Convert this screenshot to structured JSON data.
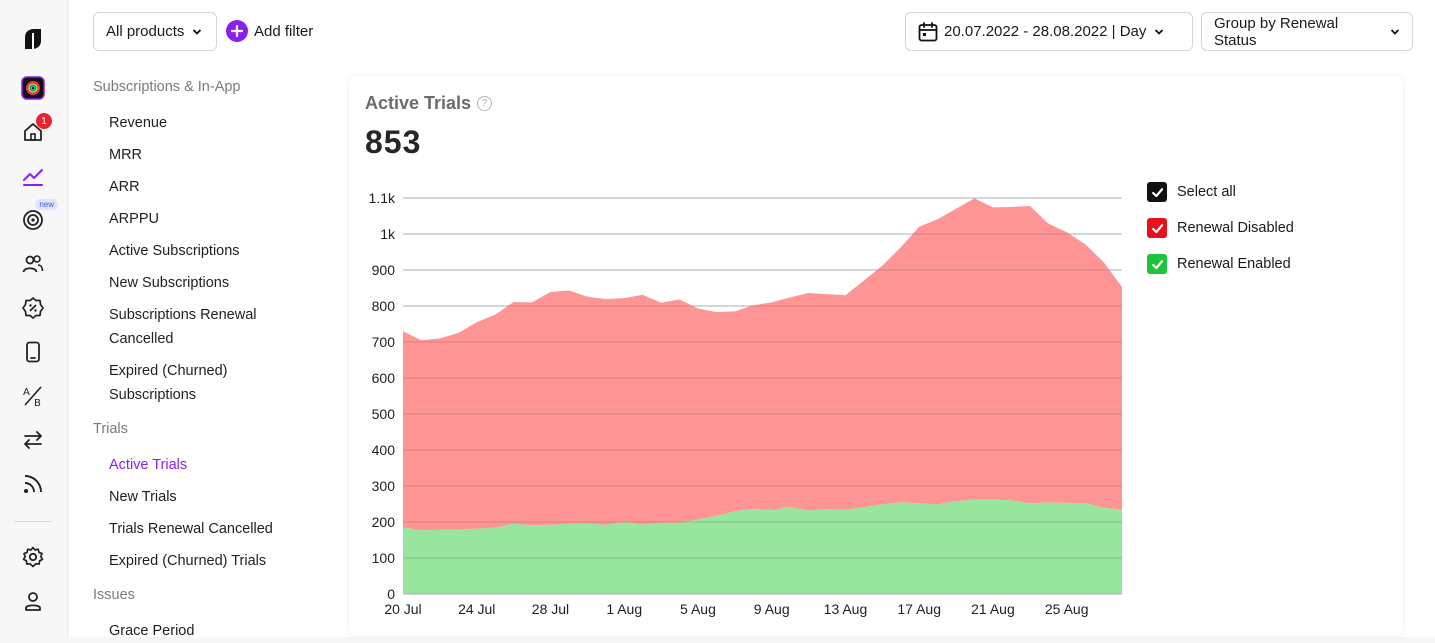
{
  "rail": {
    "home_badge": "1",
    "new_badge": "new",
    "icons": [
      "logo-icon",
      "app-icon",
      "home-icon",
      "analytics-icon",
      "target-icon",
      "users-icon",
      "promo-icon",
      "device-icon",
      "ab-test-icon",
      "transfer-icon",
      "feed-icon",
      "settings-icon",
      "profile-icon"
    ]
  },
  "toolbar": {
    "products_label": "All products",
    "add_filter_label": "Add filter",
    "date_range_label": "20.07.2022 - 28.08.2022 | Day",
    "group_by_label": "Group by Renewal Status"
  },
  "nav": {
    "sections": [
      {
        "label": "Subscriptions & In-App"
      },
      {
        "label": "Trials"
      },
      {
        "label": "Issues"
      }
    ],
    "subscriptions_items": [
      "Revenue",
      "MRR",
      "ARR",
      "ARPPU",
      "Active Subscriptions",
      "New Subscriptions",
      "Subscriptions Renewal Cancelled",
      "Expired (Churned) Subscriptions"
    ],
    "trials_items": [
      "Active Trials",
      "New Trials",
      "Trials Renewal Cancelled",
      "Expired (Churned) Trials"
    ],
    "issues_items": [
      "Grace Period"
    ],
    "active_item": "Active Trials"
  },
  "card": {
    "title": "Active Trials",
    "value": "853"
  },
  "legend": {
    "select_all": "Select all",
    "items": [
      {
        "label": "Renewal Disabled",
        "color": "#e8101a"
      },
      {
        "label": "Renewal Enabled",
        "color": "#1ec43a"
      }
    ],
    "select_all_color": "#111111"
  },
  "chart_data": {
    "type": "area",
    "stacked": true,
    "x": [
      "20 Jul",
      "21 Jul",
      "22 Jul",
      "23 Jul",
      "24 Jul",
      "25 Jul",
      "26 Jul",
      "27 Jul",
      "28 Jul",
      "29 Jul",
      "30 Jul",
      "31 Jul",
      "1 Aug",
      "2 Aug",
      "3 Aug",
      "4 Aug",
      "5 Aug",
      "6 Aug",
      "7 Aug",
      "8 Aug",
      "9 Aug",
      "10 Aug",
      "11 Aug",
      "12 Aug",
      "13 Aug",
      "14 Aug",
      "15 Aug",
      "16 Aug",
      "17 Aug",
      "18 Aug",
      "19 Aug",
      "20 Aug",
      "21 Aug",
      "22 Aug",
      "23 Aug",
      "24 Aug",
      "25 Aug",
      "26 Aug",
      "27 Aug",
      "28 Aug"
    ],
    "x_tick_labels": [
      "20 Jul",
      "24 Jul",
      "28 Jul",
      "1 Aug",
      "5 Aug",
      "9 Aug",
      "13 Aug",
      "17 Aug",
      "21 Aug",
      "25 Aug"
    ],
    "series": [
      {
        "name": "Renewal Enabled",
        "color": "#98e69e",
        "values": [
          185,
          177,
          178,
          179,
          182,
          184,
          195,
          191,
          192,
          195,
          196,
          192,
          200,
          193,
          198,
          198,
          207,
          217,
          230,
          237,
          233,
          242,
          232,
          236,
          234,
          241,
          249,
          255,
          252,
          249,
          258,
          262,
          262,
          260,
          252,
          254,
          253,
          252,
          240,
          234
        ]
      },
      {
        "name": "Renewal Disabled",
        "color": "#ff9494",
        "values": [
          545,
          528,
          532,
          546,
          573,
          592,
          616,
          619,
          647,
          648,
          630,
          627,
          622,
          638,
          611,
          620,
          586,
          566,
          555,
          565,
          577,
          582,
          604,
          597,
          596,
          630,
          663,
          708,
          768,
          792,
          812,
          837,
          812,
          815,
          826,
          775,
          752,
          720,
          682,
          619
        ]
      }
    ],
    "ylim": [
      0,
      1100
    ],
    "y_ticks": [
      0,
      100,
      200,
      300,
      400,
      500,
      600,
      700,
      800,
      900,
      1000,
      1100
    ],
    "y_tick_labels": [
      "0",
      "100",
      "200",
      "300",
      "400",
      "500",
      "600",
      "700",
      "800",
      "900",
      "1k",
      "1.1k"
    ],
    "grid": true,
    "legend_position": "right"
  }
}
